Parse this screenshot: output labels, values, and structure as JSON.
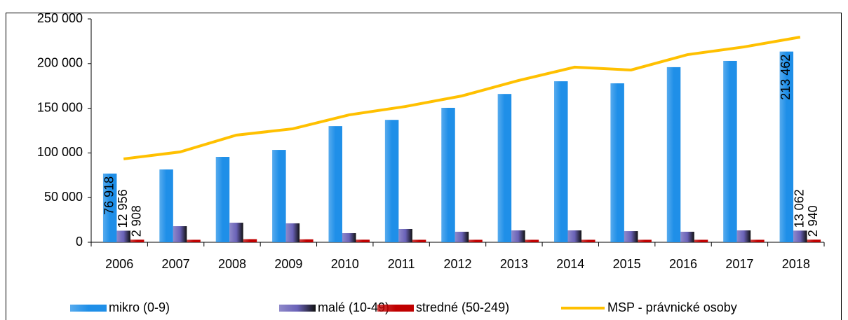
{
  "chart_data": {
    "type": "bar",
    "categories": [
      "2006",
      "2007",
      "2008",
      "2009",
      "2010",
      "2011",
      "2012",
      "2013",
      "2014",
      "2015",
      "2016",
      "2017",
      "2018"
    ],
    "series": [
      {
        "name": "mikro (0-9)",
        "color": "#1f8fe8",
        "values": [
          76918,
          81500,
          95600,
          103400,
          130000,
          137000,
          150500,
          166000,
          180200,
          177900,
          196000,
          203000,
          213462
        ],
        "value_labels": [
          "76 918",
          null,
          null,
          null,
          null,
          null,
          null,
          null,
          null,
          null,
          null,
          null,
          "213 462"
        ]
      },
      {
        "name": "malé (10-49)",
        "color": "#6a62b8",
        "values": [
          12956,
          18000,
          21900,
          21200,
          10200,
          14900,
          11800,
          13300,
          13300,
          12500,
          11800,
          13300,
          13062
        ],
        "value_labels": [
          "12 956",
          null,
          null,
          null,
          null,
          null,
          null,
          null,
          null,
          null,
          null,
          null,
          "13 062"
        ]
      },
      {
        "name": "stredné (50-249)",
        "color": "#c00000",
        "values": [
          2908,
          2800,
          3500,
          3300,
          2900,
          2800,
          2800,
          2800,
          2800,
          2800,
          2800,
          2800,
          2940
        ],
        "value_labels": [
          "2 908",
          null,
          null,
          null,
          null,
          null,
          null,
          null,
          null,
          null,
          null,
          null,
          "2 940"
        ]
      },
      {
        "name": "MSP - právnické osoby",
        "color": "#ffc000",
        "type": "line",
        "values": [
          93300,
          101100,
          119900,
          127000,
          142600,
          152000,
          163800,
          181000,
          196000,
          192800,
          210000,
          218600,
          229600
        ]
      }
    ],
    "ylim": [
      0,
      250000
    ],
    "yticks": [
      {
        "value": 0,
        "label": "0"
      },
      {
        "value": 50000,
        "label": "50 000"
      },
      {
        "value": 100000,
        "label": "100 000"
      },
      {
        "value": 150000,
        "label": "150 000"
      },
      {
        "value": 200000,
        "label": "200 000"
      },
      {
        "value": 250000,
        "label": "250 000"
      }
    ],
    "legend": "bottom"
  }
}
